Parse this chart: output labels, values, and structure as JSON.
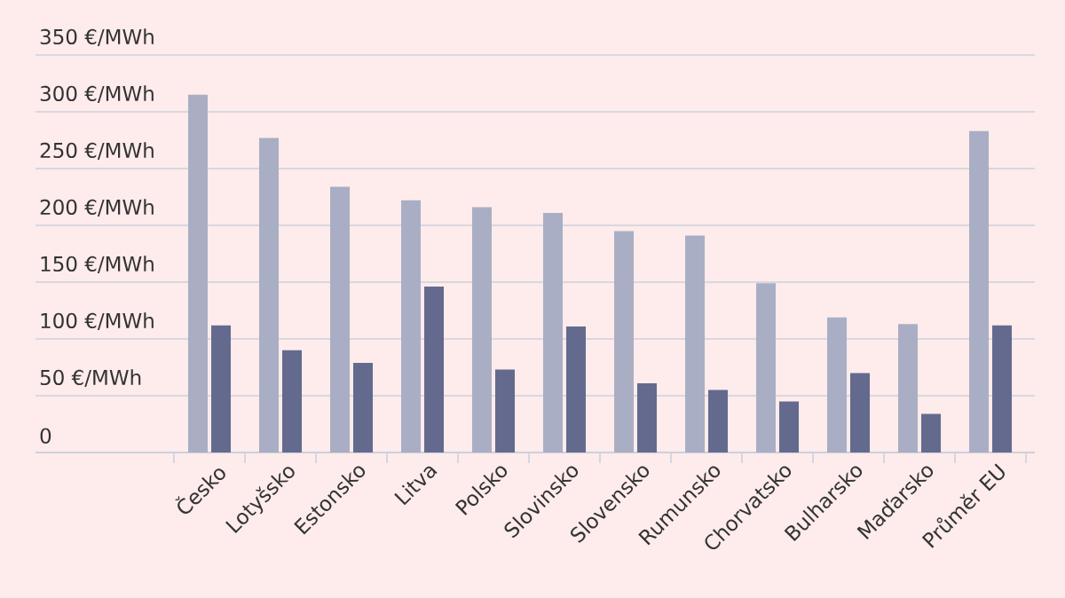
{
  "chart_data": {
    "type": "bar",
    "categories": [
      "Česko",
      "Lotyšsko",
      "Estonsko",
      "Litva",
      "Polsko",
      "Slovinsko",
      "Slovensko",
      "Rumunsko",
      "Chorvatsko",
      "Bulharsko",
      "Maďarsko",
      "Průměr EU"
    ],
    "series": [
      {
        "color": "#a9aec4",
        "values": [
          315,
          277,
          234,
          222,
          216,
          211,
          195,
          191,
          149,
          119,
          113,
          283
        ]
      },
      {
        "color": "#636a8e",
        "values": [
          112,
          90,
          79,
          146,
          73,
          111,
          61,
          55,
          45,
          70,
          34,
          112
        ]
      }
    ],
    "ylim": [
      0,
      350
    ],
    "yticks": [
      0,
      {
        "value": 50,
        "label": "50 €/MWh"
      },
      {
        "value": 100,
        "label": "100 €/MWh"
      },
      {
        "value": 150,
        "label": "150 €/MWh"
      },
      {
        "value": 200,
        "label": "200 €/MWh"
      },
      {
        "value": 250,
        "label": "250 €/MWh"
      },
      {
        "value": 300,
        "label": "300 €/MWh"
      },
      {
        "value": 350,
        "label": "350 €/MWh"
      }
    ],
    "grid": "y"
  }
}
